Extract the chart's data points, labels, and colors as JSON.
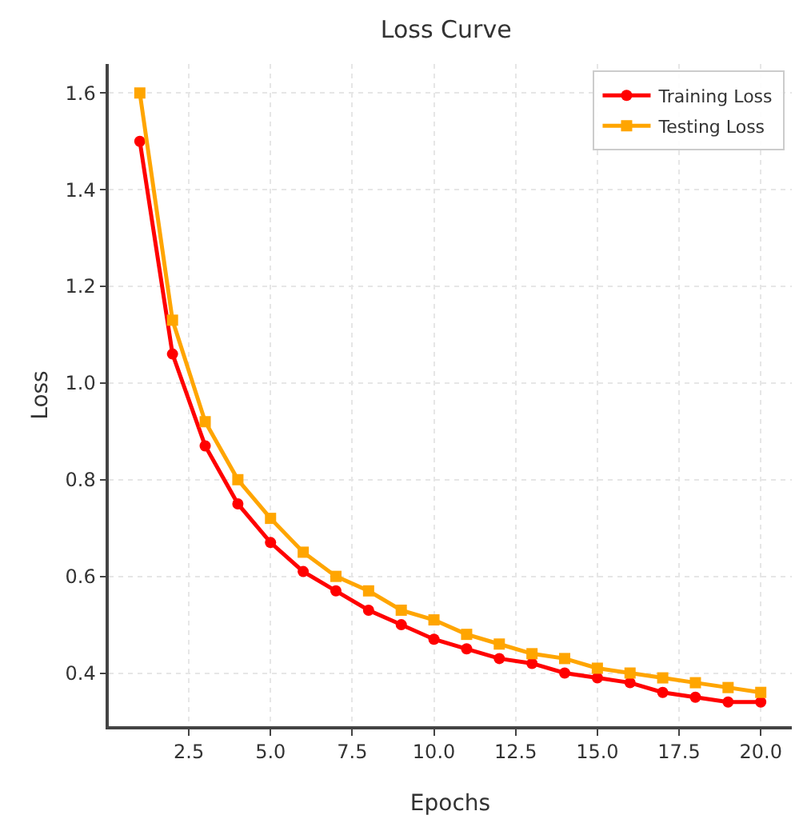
{
  "chart_data": {
    "type": "line",
    "title": "Loss Curve",
    "xlabel": "Epochs",
    "ylabel": "Loss",
    "x": [
      1,
      2,
      3,
      4,
      5,
      6,
      7,
      8,
      9,
      10,
      11,
      12,
      13,
      14,
      15,
      16,
      17,
      18,
      19,
      20
    ],
    "series": [
      {
        "name": "Training Loss",
        "color": "#ff0000",
        "marker": "circle",
        "values": [
          1.5,
          1.06,
          0.87,
          0.75,
          0.67,
          0.61,
          0.57,
          0.53,
          0.5,
          0.47,
          0.45,
          0.43,
          0.42,
          0.4,
          0.39,
          0.38,
          0.36,
          0.35,
          0.34,
          0.34
        ]
      },
      {
        "name": "Testing Loss",
        "color": "#ffa500",
        "marker": "square",
        "values": [
          1.6,
          1.13,
          0.92,
          0.8,
          0.72,
          0.65,
          0.6,
          0.57,
          0.53,
          0.51,
          0.48,
          0.46,
          0.44,
          0.43,
          0.41,
          0.4,
          0.39,
          0.38,
          0.37,
          0.36
        ]
      }
    ],
    "xlim": [
      0.05,
      20.95
    ],
    "xticks": [
      {
        "value": 2.5,
        "label": "2.5"
      },
      {
        "value": 5,
        "label": "5.0"
      },
      {
        "value": 7.5,
        "label": "7.5"
      },
      {
        "value": 10,
        "label": "10.0"
      },
      {
        "value": 12.5,
        "label": "12.5"
      },
      {
        "value": 15,
        "label": "15.0"
      },
      {
        "value": 17.5,
        "label": "17.5"
      },
      {
        "value": 20,
        "label": "20.0"
      }
    ],
    "ylim": [
      0.29,
      1.66
    ],
    "yticks": [
      0.4,
      0.6,
      0.8,
      {
        "value": 1,
        "label": "1.0"
      },
      1.2,
      1.4,
      1.6
    ],
    "grid": true,
    "legend": "top right",
    "line_style": "solid"
  }
}
